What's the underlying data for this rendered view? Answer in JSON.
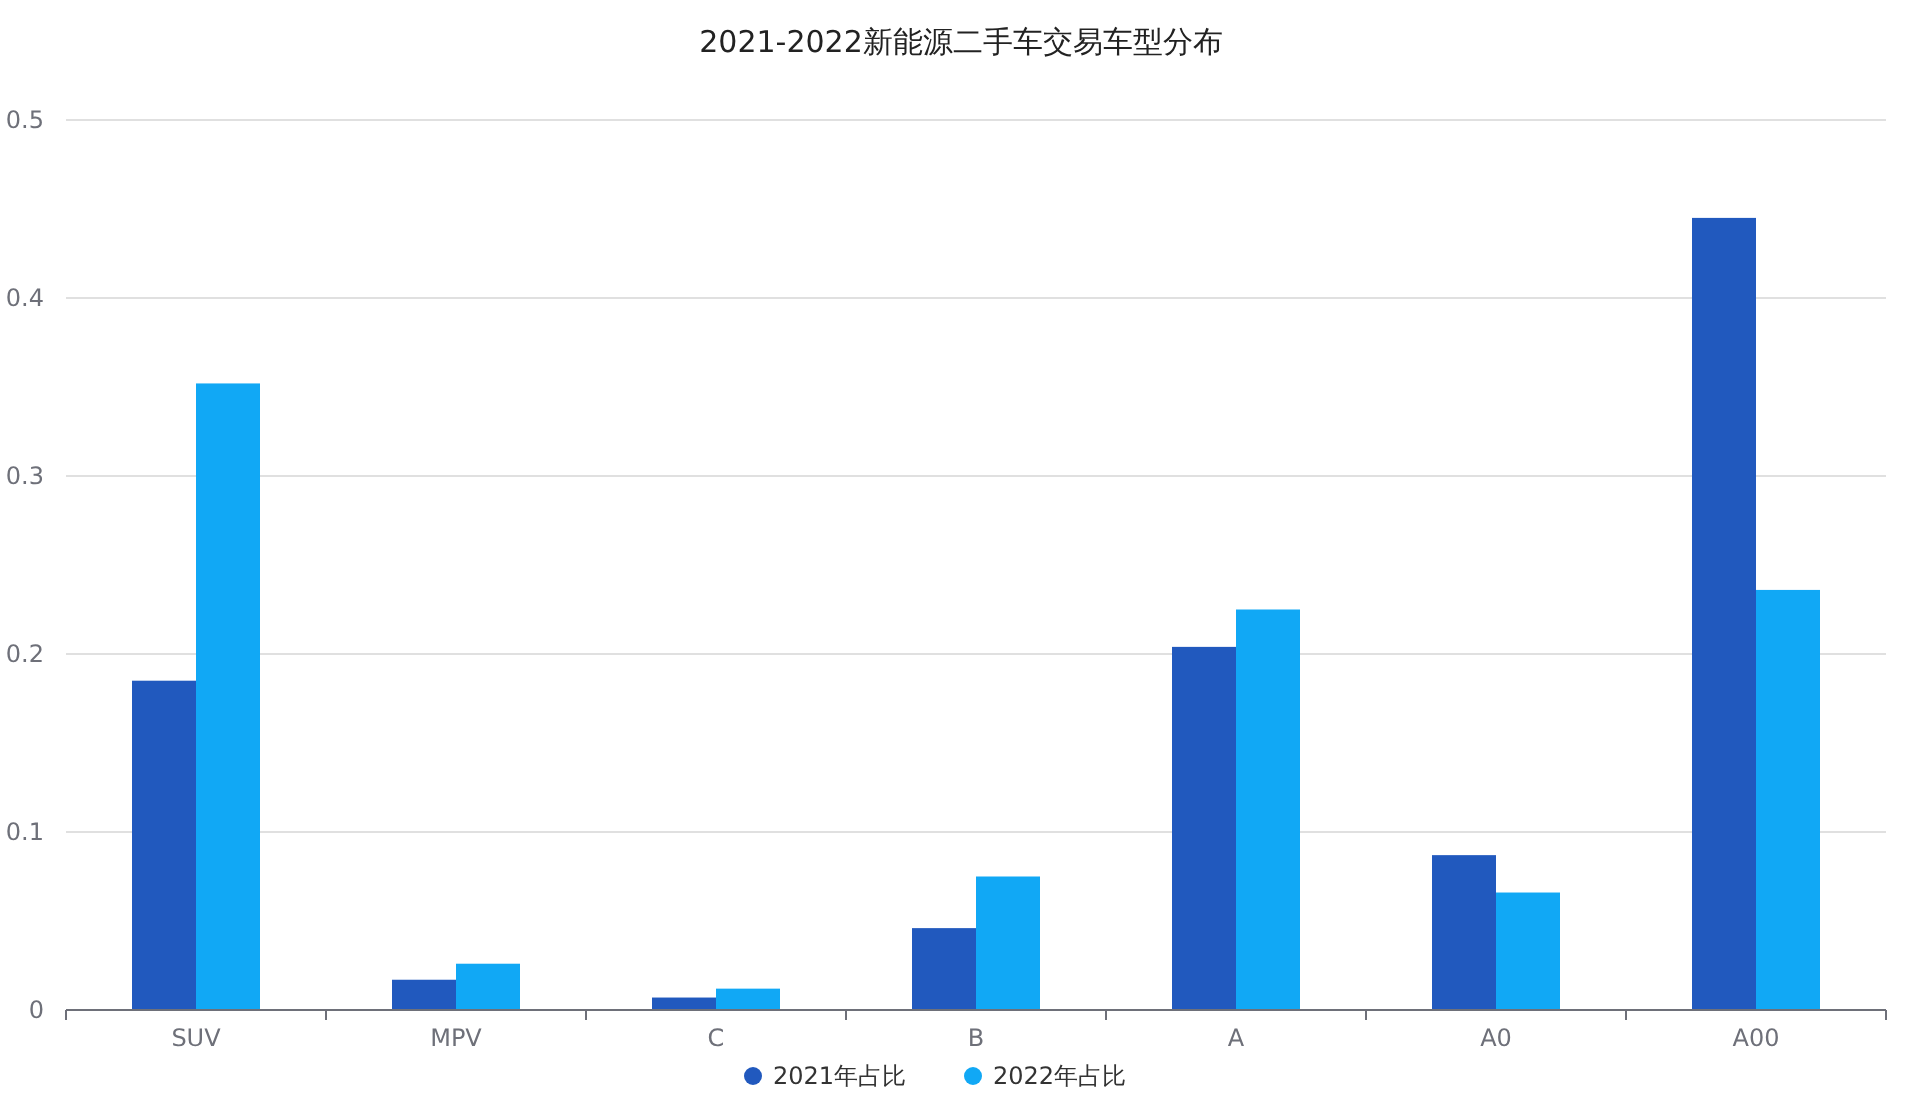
{
  "chart_data": {
    "type": "bar",
    "title": "2021-2022新能源二手车交易车型分布",
    "categories": [
      "SUV",
      "MPV",
      "C",
      "B",
      "A",
      "A0",
      "A00"
    ],
    "series": [
      {
        "name": "2021年占比",
        "color": "#2159be",
        "values": [
          0.185,
          0.017,
          0.007,
          0.046,
          0.204,
          0.087,
          0.445
        ]
      },
      {
        "name": "2022年占比",
        "color": "#11a8f5",
        "values": [
          0.352,
          0.026,
          0.012,
          0.075,
          0.225,
          0.066,
          0.236
        ]
      }
    ],
    "ylim": [
      0,
      0.5
    ],
    "yticks": [
      0,
      0.1,
      0.2,
      0.3,
      0.4,
      0.5
    ],
    "grid": "y",
    "legend": "bottom"
  }
}
